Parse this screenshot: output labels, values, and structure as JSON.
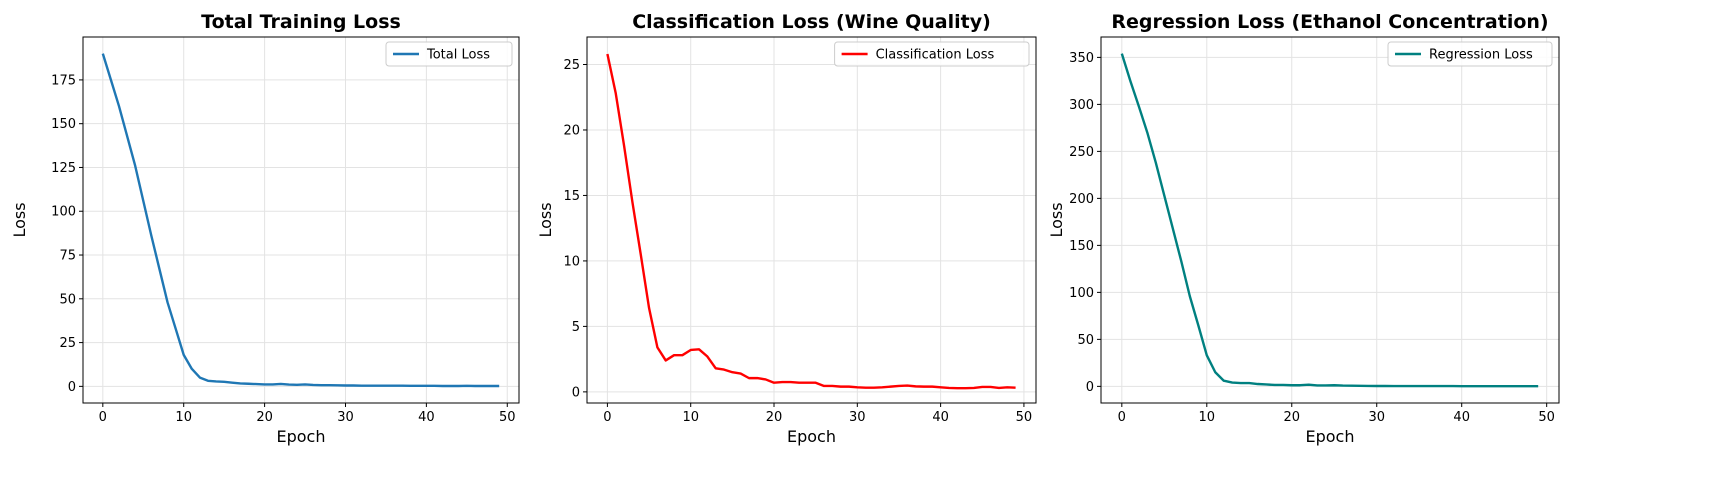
{
  "chart_data": [
    {
      "type": "line",
      "title": "Total Training Loss",
      "xlabel": "Epoch",
      "ylabel": "Loss",
      "xlim": [
        -2.45,
        51.45
      ],
      "ylim": [
        -9.5,
        199.5
      ],
      "xticks": [
        0,
        10,
        20,
        30,
        40,
        50
      ],
      "yticks": [
        0,
        25,
        50,
        75,
        100,
        125,
        150,
        175
      ],
      "grid": true,
      "legend_position": "top-right",
      "series": [
        {
          "name": "Total Loss",
          "color": "#1f77b4",
          "x": [
            0,
            1,
            2,
            3,
            4,
            5,
            6,
            7,
            8,
            9,
            10,
            11,
            12,
            13,
            14,
            15,
            16,
            17,
            18,
            19,
            20,
            21,
            22,
            23,
            24,
            25,
            26,
            27,
            28,
            29,
            30,
            31,
            32,
            33,
            34,
            35,
            36,
            37,
            38,
            39,
            40,
            41,
            42,
            43,
            44,
            45,
            46,
            47,
            48,
            49
          ],
          "y": [
            190,
            175,
            160,
            143,
            126,
            106,
            86,
            67,
            48,
            33,
            18,
            10,
            5,
            3.2,
            2.8,
            2.6,
            2.1,
            1.7,
            1.5,
            1.3,
            1.1,
            1.1,
            1.4,
            1.0,
            0.9,
            1.1,
            0.8,
            0.7,
            0.7,
            0.6,
            0.5,
            0.5,
            0.4,
            0.4,
            0.4,
            0.4,
            0.4,
            0.4,
            0.3,
            0.3,
            0.3,
            0.3,
            0.2,
            0.2,
            0.2,
            0.3,
            0.2,
            0.2,
            0.2,
            0.2
          ]
        }
      ]
    },
    {
      "type": "line",
      "title": "Classification Loss (Wine Quality)",
      "xlabel": "Epoch",
      "ylabel": "Loss",
      "xlim": [
        -2.45,
        51.45
      ],
      "ylim": [
        -0.85,
        27.1
      ],
      "xticks": [
        0,
        10,
        20,
        30,
        40,
        50
      ],
      "yticks": [
        0,
        5,
        10,
        15,
        20,
        25
      ],
      "grid": true,
      "legend_position": "top-right",
      "series": [
        {
          "name": "Classification Loss",
          "color": "#ff0000",
          "x": [
            0,
            1,
            2,
            3,
            4,
            5,
            6,
            7,
            8,
            9,
            10,
            11,
            12,
            13,
            14,
            15,
            16,
            17,
            18,
            19,
            20,
            21,
            22,
            23,
            24,
            25,
            26,
            27,
            28,
            29,
            30,
            31,
            32,
            33,
            34,
            35,
            36,
            37,
            38,
            39,
            40,
            41,
            42,
            43,
            44,
            45,
            46,
            47,
            48,
            49
          ],
          "y": [
            25.8,
            22.8,
            18.8,
            14.5,
            10.5,
            6.4,
            3.4,
            2.4,
            2.8,
            2.8,
            3.2,
            3.25,
            2.7,
            1.8,
            1.7,
            1.5,
            1.4,
            1.05,
            1.05,
            0.95,
            0.7,
            0.75,
            0.75,
            0.7,
            0.7,
            0.7,
            0.45,
            0.45,
            0.4,
            0.4,
            0.35,
            0.32,
            0.32,
            0.35,
            0.4,
            0.45,
            0.48,
            0.42,
            0.4,
            0.4,
            0.35,
            0.3,
            0.28,
            0.28,
            0.3,
            0.38,
            0.38,
            0.3,
            0.35,
            0.32
          ]
        }
      ]
    },
    {
      "type": "line",
      "title": "Regression Loss (Ethanol Concentration)",
      "xlabel": "Epoch",
      "ylabel": "Loss",
      "xlim": [
        -2.45,
        51.45
      ],
      "ylim": [
        -17.7,
        371.7
      ],
      "xticks": [
        0,
        10,
        20,
        30,
        40,
        50
      ],
      "yticks": [
        0,
        50,
        100,
        150,
        200,
        250,
        300,
        350
      ],
      "grid": true,
      "legend_position": "top-right",
      "series": [
        {
          "name": "Regression Loss",
          "color": "#008080",
          "x": [
            0,
            1,
            2,
            3,
            4,
            5,
            6,
            7,
            8,
            9,
            10,
            11,
            12,
            13,
            14,
            15,
            16,
            17,
            18,
            19,
            20,
            21,
            22,
            23,
            24,
            25,
            26,
            27,
            28,
            29,
            30,
            31,
            32,
            33,
            34,
            35,
            36,
            37,
            38,
            39,
            40,
            41,
            42,
            43,
            44,
            45,
            46,
            47,
            48,
            49
          ],
          "y": [
            354,
            325,
            298,
            270,
            238,
            203,
            168,
            133,
            96,
            65,
            33,
            15,
            6,
            4,
            3.5,
            3.5,
            2.5,
            2,
            1.5,
            1.5,
            1.2,
            1.2,
            1.8,
            1,
            1,
            1.2,
            0.8,
            0.7,
            0.6,
            0.5,
            0.4,
            0.4,
            0.3,
            0.3,
            0.3,
            0.3,
            0.3,
            0.3,
            0.3,
            0.3,
            0.2,
            0.2,
            0.2,
            0.2,
            0.2,
            0.2,
            0.2,
            0.2,
            0.2,
            0.2
          ]
        }
      ]
    }
  ]
}
